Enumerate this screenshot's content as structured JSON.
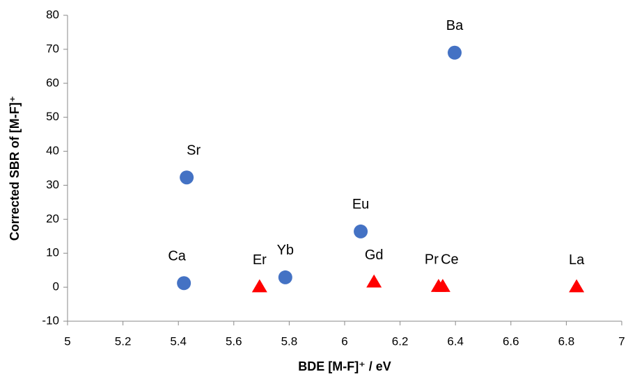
{
  "chart_data": {
    "type": "scatter",
    "xlabel": "BDE [M-F]⁺ / eV",
    "ylabel": "Corrected SBR of [M-F]⁺",
    "xlim": [
      5,
      7
    ],
    "xticks": [
      5,
      5.2,
      5.4,
      5.6,
      5.8,
      6,
      6.2,
      6.4,
      6.6,
      6.8,
      7
    ],
    "ylim": [
      -10,
      80
    ],
    "yticks": [
      -10,
      0,
      10,
      20,
      30,
      40,
      50,
      60,
      70,
      80
    ],
    "series": [
      {
        "color": "#4472c4",
        "marker": "circle",
        "x": [
          5.42,
          5.43,
          5.786,
          6.058,
          6.397
        ],
        "values": [
          1.2,
          32.3,
          2.9,
          16.4,
          69.0
        ],
        "labels": [
          "Ca",
          "Sr",
          "Yb",
          "Eu",
          "Ba"
        ]
      },
      {
        "color": "#ff0000",
        "marker": "triangle",
        "x": [
          5.693,
          6.106,
          6.339,
          6.354,
          6.837
        ],
        "values": [
          0.1,
          1.5,
          0.2,
          0.2,
          0.1
        ],
        "labels": [
          "Er",
          "Gd",
          "Pr",
          "Ce",
          "La"
        ]
      }
    ]
  }
}
